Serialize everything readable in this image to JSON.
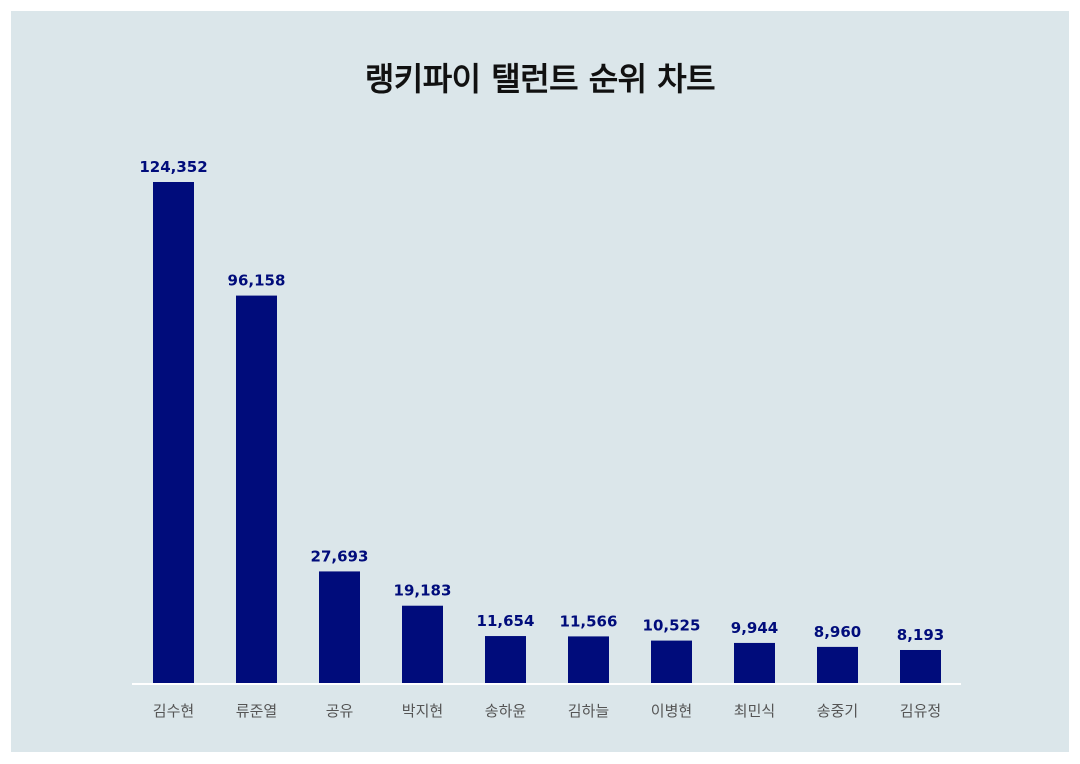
{
  "chart_data": {
    "type": "bar",
    "title": "랭키파이 탤런트 순위 차트",
    "categories": [
      "김수현",
      "류준열",
      "공유",
      "박지현",
      "송하윤",
      "김하늘",
      "이병현",
      "최민식",
      "송중기",
      "김유정"
    ],
    "series": [
      {
        "values": [
          124352,
          96158,
          27693,
          19183,
          11654,
          11566,
          10525,
          9944,
          8960,
          8193
        ],
        "value_labels": [
          "124,352",
          "96,158",
          "27,693",
          "19,183",
          "11,654",
          "11,566",
          "10,525",
          "9,944",
          "8,960",
          "8,193"
        ]
      }
    ],
    "xlabel": "",
    "ylabel": "",
    "ylim": [
      0,
      124352
    ],
    "grid": false,
    "legend": "none",
    "colors": {
      "background": "#dbe6ea",
      "bar": "#000c7b",
      "value_label": "#000c7b",
      "category_label": "#555555",
      "baseline": "#ffffff",
      "title": "#111111"
    }
  }
}
